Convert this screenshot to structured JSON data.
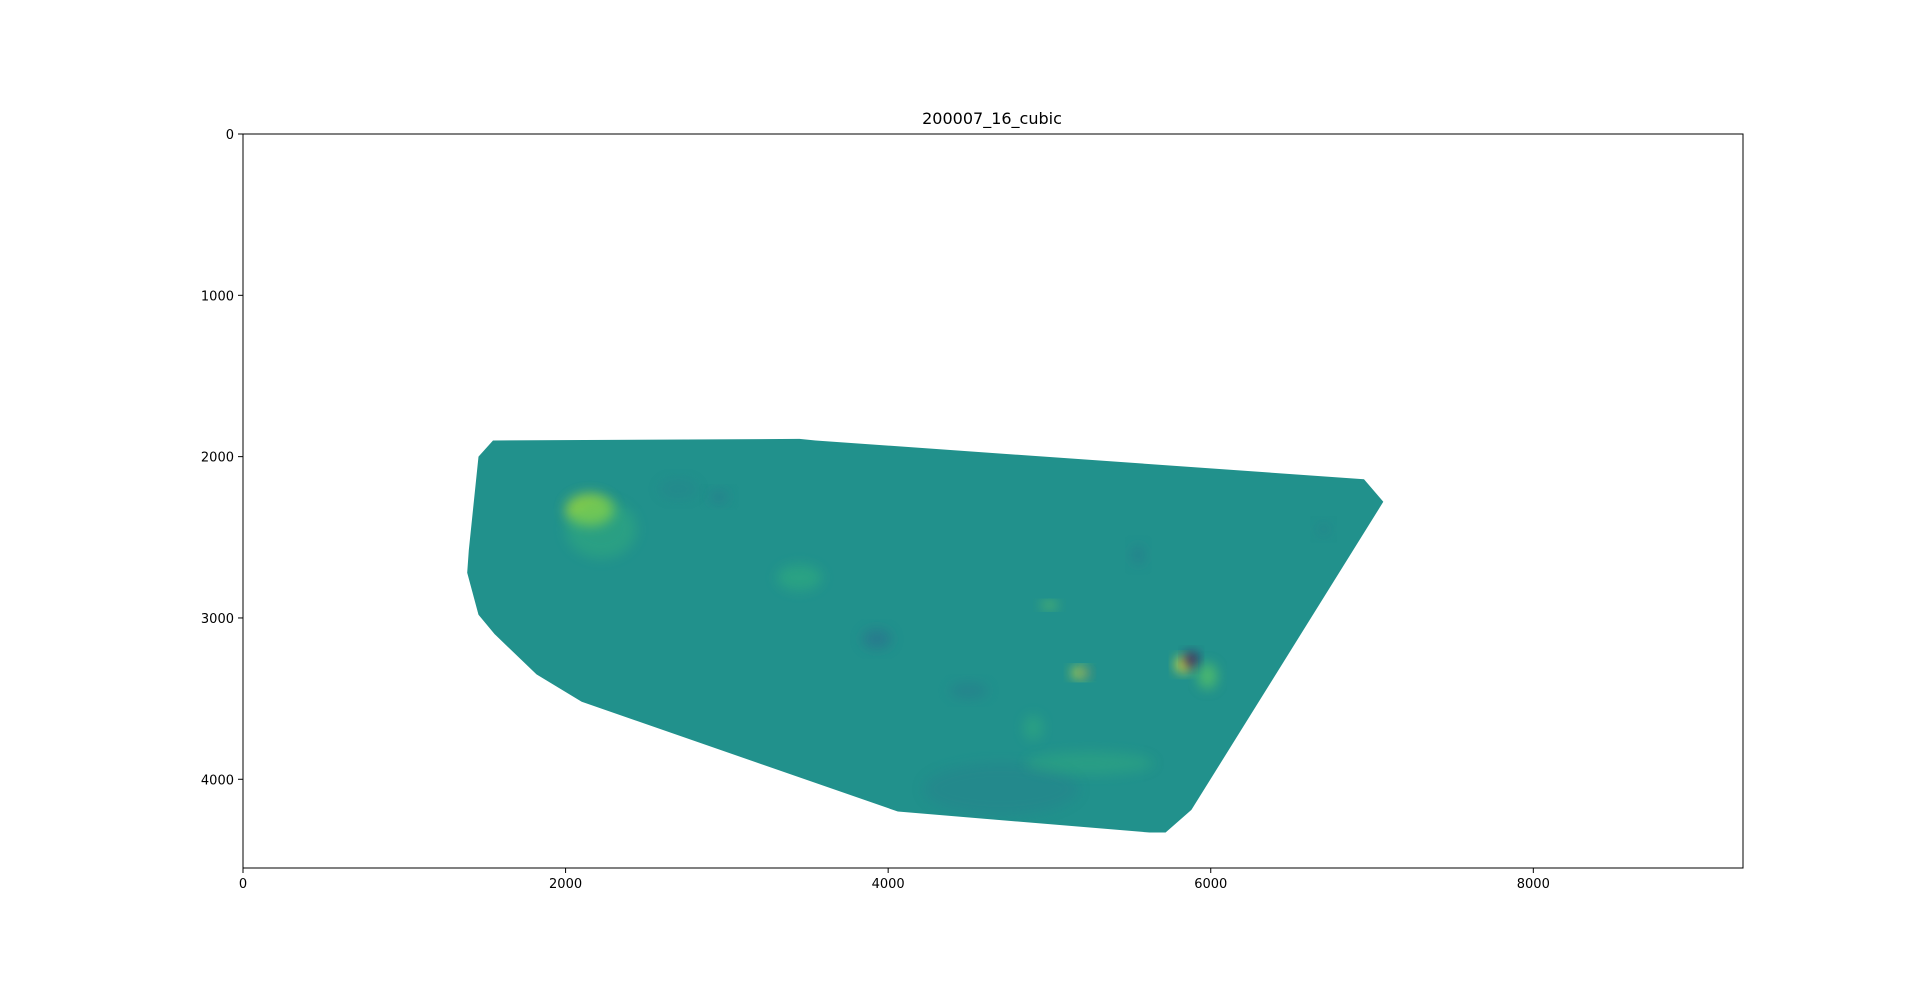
{
  "chart_data": {
    "type": "heatmap",
    "title": "200007_16_cubic",
    "xlabel": "",
    "ylabel": "",
    "xlim": [
      0,
      9300
    ],
    "ylim": [
      4550,
      0
    ],
    "y_inverted": true,
    "grid": false,
    "legend": "none",
    "colormap": "viridis",
    "x_ticks": [
      0,
      2000,
      4000,
      6000,
      8000
    ],
    "y_ticks": [
      0,
      1000,
      2000,
      3000,
      4000
    ],
    "x_tick_labels": [
      "0",
      "2000",
      "4000",
      "6000",
      "8000"
    ],
    "y_tick_labels": [
      "0",
      "1000",
      "2000",
      "3000",
      "4000"
    ],
    "base_color": "#21918c",
    "region_outline": [
      [
        1550,
        1900
      ],
      [
        3450,
        1890
      ],
      [
        3550,
        1900
      ],
      [
        6950,
        2140
      ],
      [
        7070,
        2280
      ],
      [
        5880,
        4190
      ],
      [
        5720,
        4330
      ],
      [
        5620,
        4330
      ],
      [
        4060,
        4200
      ],
      [
        2100,
        3520
      ],
      [
        1820,
        3350
      ],
      [
        1560,
        3100
      ],
      [
        1460,
        2980
      ],
      [
        1390,
        2720
      ],
      [
        1400,
        2580
      ],
      [
        1460,
        2000
      ]
    ],
    "features": [
      {
        "x": 2150,
        "y": 2330,
        "rx": 150,
        "ry": 100,
        "color": "#a5db36",
        "opacity": 0.8
      },
      {
        "x": 2220,
        "y": 2450,
        "rx": 220,
        "ry": 180,
        "color": "#3bbb75",
        "opacity": 0.35
      },
      {
        "x": 2950,
        "y": 2250,
        "rx": 60,
        "ry": 40,
        "color": "#2a788e",
        "opacity": 0.6
      },
      {
        "x": 3450,
        "y": 2750,
        "rx": 140,
        "ry": 80,
        "color": "#35b779",
        "opacity": 0.45
      },
      {
        "x": 3930,
        "y": 3130,
        "rx": 90,
        "ry": 60,
        "color": "#2c728e",
        "opacity": 0.7
      },
      {
        "x": 5000,
        "y": 2920,
        "rx": 50,
        "ry": 20,
        "color": "#7ad151",
        "opacity": 0.8
      },
      {
        "x": 5190,
        "y": 3340,
        "rx": 50,
        "ry": 30,
        "color": "#fde725",
        "opacity": 0.9
      },
      {
        "x": 5230,
        "y": 3340,
        "rx": 30,
        "ry": 25,
        "color": "#31688e",
        "opacity": 0.8
      },
      {
        "x": 5830,
        "y": 3290,
        "rx": 45,
        "ry": 45,
        "color": "#fde725",
        "opacity": 1.0
      },
      {
        "x": 5880,
        "y": 3260,
        "rx": 40,
        "ry": 45,
        "color": "#440154",
        "opacity": 1.0
      },
      {
        "x": 5980,
        "y": 3360,
        "rx": 60,
        "ry": 80,
        "color": "#5ec962",
        "opacity": 0.7
      },
      {
        "x": 4700,
        "y": 4060,
        "rx": 480,
        "ry": 160,
        "color": "#2a7b8e",
        "opacity": 0.35
      },
      {
        "x": 5250,
        "y": 3900,
        "rx": 400,
        "ry": 70,
        "color": "#3bbb75",
        "opacity": 0.3
      },
      {
        "x": 4500,
        "y": 3450,
        "rx": 120,
        "ry": 50,
        "color": "#2c728e",
        "opacity": 0.4
      },
      {
        "x": 5550,
        "y": 2610,
        "rx": 40,
        "ry": 60,
        "color": "#2c728e",
        "opacity": 0.5
      },
      {
        "x": 2700,
        "y": 2200,
        "rx": 120,
        "ry": 60,
        "color": "#2a7b8e",
        "opacity": 0.3
      },
      {
        "x": 4900,
        "y": 3680,
        "rx": 60,
        "ry": 80,
        "color": "#3bbb75",
        "opacity": 0.35
      },
      {
        "x": 6700,
        "y": 2450,
        "rx": 40,
        "ry": 40,
        "color": "#2a788e",
        "opacity": 0.4
      }
    ]
  }
}
